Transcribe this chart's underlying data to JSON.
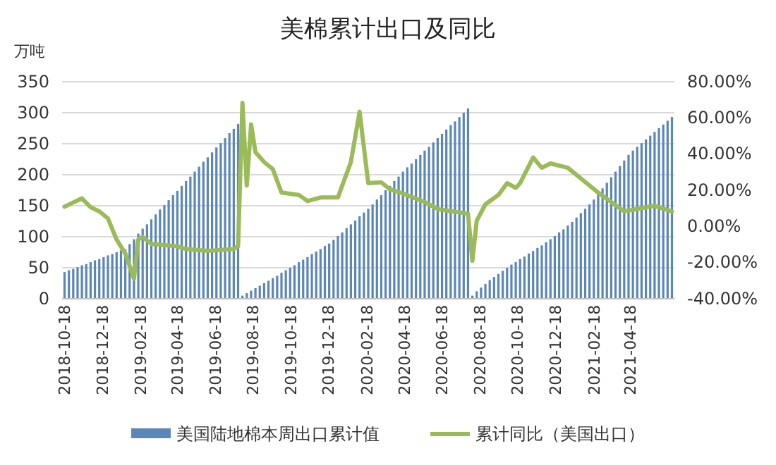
{
  "chart_data": {
    "type": "bar",
    "title": "美棉累计出口及同比",
    "ylabel": "万吨",
    "x": [
      "2018-10-18",
      "2018-10-25",
      "2018-11-01",
      "2018-11-08",
      "2018-11-15",
      "2018-11-22",
      "2018-11-29",
      "2018-12-06",
      "2018-12-13",
      "2018-12-20",
      "2018-12-27",
      "2019-01-03",
      "2019-01-10",
      "2019-01-17",
      "2019-01-24",
      "2019-01-31",
      "2019-02-07",
      "2019-02-14",
      "2019-02-21",
      "2019-02-28",
      "2019-03-07",
      "2019-03-14",
      "2019-03-21",
      "2019-03-28",
      "2019-04-04",
      "2019-04-11",
      "2019-04-18",
      "2019-04-25",
      "2019-05-02",
      "2019-05-09",
      "2019-05-16",
      "2019-05-23",
      "2019-05-30",
      "2019-06-06",
      "2019-06-13",
      "2019-06-20",
      "2019-06-27",
      "2019-07-04",
      "2019-07-11",
      "2019-07-18",
      "2019-07-25",
      "2019-08-01",
      "2019-08-08",
      "2019-08-15",
      "2019-08-22",
      "2019-08-29",
      "2019-09-05",
      "2019-09-12",
      "2019-09-19",
      "2019-09-26",
      "2019-10-03",
      "2019-10-10",
      "2019-10-17",
      "2019-10-24",
      "2019-10-31",
      "2019-11-07",
      "2019-11-14",
      "2019-11-21",
      "2019-11-28",
      "2019-12-05",
      "2019-12-12",
      "2019-12-19",
      "2019-12-26",
      "2020-01-02",
      "2020-01-09",
      "2020-01-16",
      "2020-01-23",
      "2020-01-30",
      "2020-02-06",
      "2020-02-13",
      "2020-02-20",
      "2020-02-27",
      "2020-03-05",
      "2020-03-12",
      "2020-03-19",
      "2020-03-26",
      "2020-04-02",
      "2020-04-09",
      "2020-04-16",
      "2020-04-23",
      "2020-04-30",
      "2020-05-07",
      "2020-05-14",
      "2020-05-21",
      "2020-05-28",
      "2020-06-04",
      "2020-06-11",
      "2020-06-18",
      "2020-06-25",
      "2020-07-02",
      "2020-07-09",
      "2020-07-16",
      "2020-07-23",
      "2020-07-30",
      "2020-08-06",
      "2020-08-13",
      "2020-08-20",
      "2020-08-27",
      "2020-09-03",
      "2020-09-10",
      "2020-09-17",
      "2020-09-24",
      "2020-10-01",
      "2020-10-08",
      "2020-10-15",
      "2020-10-22",
      "2020-10-29",
      "2020-11-05",
      "2020-11-12",
      "2020-11-19",
      "2020-11-26",
      "2020-12-03",
      "2020-12-10",
      "2020-12-17",
      "2020-12-24",
      "2020-12-31",
      "2021-01-07",
      "2021-01-14",
      "2021-01-21",
      "2021-01-28",
      "2021-02-04",
      "2021-02-11",
      "2021-02-18",
      "2021-02-25",
      "2021-03-04",
      "2021-03-11",
      "2021-03-18",
      "2021-03-25",
      "2021-04-01",
      "2021-04-08",
      "2021-04-15",
      "2021-04-22",
      "2021-04-29",
      "2021-05-06",
      "2021-05-13",
      "2021-05-20",
      "2021-05-27",
      "2021-06-03",
      "2021-06-10",
      "2021-06-17",
      "2021-06-24"
    ],
    "series": [
      {
        "name": "美国陆地棉本周出口累计值",
        "color": "#5b86b8",
        "values": [
          43,
          46,
          48,
          51,
          54,
          56,
          59,
          62,
          64,
          67,
          70,
          72,
          75,
          78,
          80,
          88,
          96,
          105,
          113,
          120,
          128,
          136,
          144,
          151,
          159,
          167,
          174,
          182,
          190,
          197,
          205,
          213,
          221,
          228,
          236,
          244,
          251,
          259,
          267,
          274,
          282,
          5,
          9,
          13,
          17,
          21,
          25,
          29,
          33,
          37,
          42,
          46,
          50,
          54,
          59,
          63,
          67,
          72,
          76,
          80,
          85,
          89,
          95,
          101,
          107,
          114,
          120,
          126,
          133,
          139,
          145,
          152,
          160,
          167,
          175,
          182,
          190,
          197,
          205,
          212,
          218,
          225,
          232,
          239,
          245,
          252,
          259,
          266,
          273,
          280,
          286,
          293,
          300,
          307,
          5,
          12,
          18,
          24,
          30,
          35,
          40,
          45,
          50,
          55,
          59,
          64,
          68,
          73,
          77,
          82,
          86,
          91,
          96,
          101,
          107,
          112,
          118,
          124,
          131,
          138,
          145,
          152,
          160,
          169,
          178,
          187,
          196,
          205,
          214,
          223,
          232,
          239,
          245,
          251,
          257,
          263,
          269,
          275,
          281,
          287,
          293
        ]
      },
      {
        "name": "累计同比（美国出口）",
        "type": "line",
        "axis": "y2",
        "color": "#9bbb59",
        "x": [
          "2018-10-18",
          "2018-11-15",
          "2018-11-29",
          "2018-12-13",
          "2018-12-27",
          "2019-01-10",
          "2019-01-24",
          "2019-02-07",
          "2019-02-14",
          "2019-02-21",
          "2019-03-07",
          "2019-04-18",
          "2019-05-02",
          "2019-06-06",
          "2019-07-18",
          "2019-07-25",
          "2019-08-01",
          "2019-08-08",
          "2019-08-15",
          "2019-08-22",
          "2019-08-29",
          "2019-09-05",
          "2019-09-19",
          "2019-10-03",
          "2019-10-31",
          "2019-11-14",
          "2019-12-05",
          "2020-01-02",
          "2020-01-23",
          "2020-02-06",
          "2020-02-20",
          "2020-03-12",
          "2020-03-26",
          "2020-04-16",
          "2020-05-21",
          "2020-06-11",
          "2020-07-30",
          "2020-08-06",
          "2020-08-13",
          "2020-08-27",
          "2020-09-17",
          "2020-10-01",
          "2020-10-15",
          "2020-10-22",
          "2020-11-12",
          "2020-11-26",
          "2020-12-10",
          "2021-01-07",
          "2021-02-25",
          "2021-04-08",
          "2021-05-27",
          "2021-06-24"
        ],
        "values": [
          10.9,
          15.5,
          10.6,
          8.3,
          4.4,
          -7.3,
          -15,
          -29,
          -7.3,
          -5.8,
          -9.7,
          -11,
          -12.5,
          -13.5,
          -12.5,
          -11,
          68.3,
          22.6,
          56.4,
          41,
          38.3,
          35.6,
          31.7,
          18.7,
          17.4,
          14,
          16,
          16,
          35.6,
          63.4,
          23.9,
          24.4,
          20.5,
          18.2,
          13.5,
          9.6,
          7,
          -19,
          3.1,
          12.2,
          17.4,
          23.9,
          21.3,
          23.9,
          38.1,
          32.4,
          34.8,
          32.4,
          18.7,
          8.3,
          11.4,
          8.3
        ]
      }
    ],
    "xlim": [
      "2018-10-14",
      "2021-06-28"
    ],
    "xticks": [
      "2018-10-18",
      "2018-12-18",
      "2019-02-18",
      "2019-04-18",
      "2019-06-18",
      "2019-08-18",
      "2019-10-18",
      "2019-12-18",
      "2020-02-18",
      "2020-04-18",
      "2020-06-18",
      "2020-08-18",
      "2020-10-18",
      "2020-12-18",
      "2021-02-18",
      "2021-04-18"
    ],
    "ylim": [
      0,
      350
    ],
    "yticks": [
      0,
      50,
      100,
      150,
      200,
      250,
      300,
      350
    ],
    "y2lim": [
      -40,
      80
    ],
    "y2ticks": [
      {
        "value": -40,
        "label": "-40.00%"
      },
      {
        "value": -20,
        "label": "-20.00%"
      },
      {
        "value": 0,
        "label": "0.00%"
      },
      {
        "value": 20,
        "label": "20.00%"
      },
      {
        "value": 40,
        "label": "40.00%"
      },
      {
        "value": 60,
        "label": "60.00%"
      },
      {
        "value": 80,
        "label": "80.00%"
      }
    ],
    "grid": "y",
    "legend": "bottom",
    "line_style": "solid"
  }
}
